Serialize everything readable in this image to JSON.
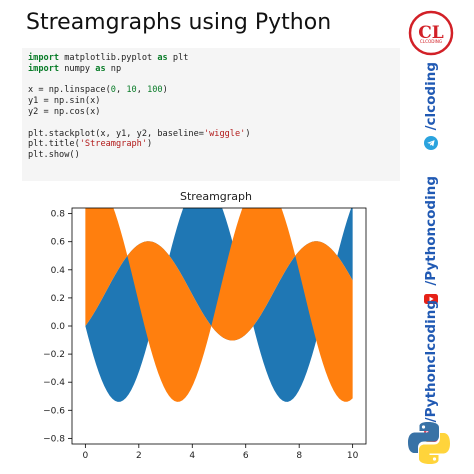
{
  "page": {
    "title": "Streamgraphs using Python"
  },
  "code": {
    "lines": [
      {
        "parts": [
          {
            "t": "import",
            "c": "kw"
          },
          {
            "t": " matplotlib.pyplot ",
            "c": ""
          },
          {
            "t": "as",
            "c": "kw"
          },
          {
            "t": " plt",
            "c": ""
          }
        ]
      },
      {
        "parts": [
          {
            "t": "import",
            "c": "kw"
          },
          {
            "t": " numpy ",
            "c": ""
          },
          {
            "t": "as",
            "c": "kw"
          },
          {
            "t": " np",
            "c": ""
          }
        ]
      },
      {
        "parts": []
      },
      {
        "parts": [
          {
            "t": "x = np.linspace(",
            "c": ""
          },
          {
            "t": "0",
            "c": "num"
          },
          {
            "t": ", ",
            "c": ""
          },
          {
            "t": "10",
            "c": "num"
          },
          {
            "t": ", ",
            "c": ""
          },
          {
            "t": "100",
            "c": "num"
          },
          {
            "t": ")",
            "c": ""
          }
        ]
      },
      {
        "parts": [
          {
            "t": "y1 = np.sin(x)",
            "c": ""
          }
        ]
      },
      {
        "parts": [
          {
            "t": "y2 = np.cos(x)",
            "c": ""
          }
        ]
      },
      {
        "parts": []
      },
      {
        "parts": [
          {
            "t": "plt.stackplot(x, y1, y2, baseline=",
            "c": ""
          },
          {
            "t": "'wiggle'",
            "c": "str"
          },
          {
            "t": ")",
            "c": ""
          }
        ]
      },
      {
        "parts": [
          {
            "t": "plt.title(",
            "c": ""
          },
          {
            "t": "'Streamgraph'",
            "c": "str"
          },
          {
            "t": ")",
            "c": ""
          }
        ]
      },
      {
        "parts": [
          {
            "t": "plt.show()",
            "c": ""
          }
        ]
      }
    ]
  },
  "chart_data": {
    "type": "area",
    "title": "Streamgraph",
    "xlabel": "",
    "ylabel": "",
    "baseline": "wiggle",
    "x_range": [
      0,
      10
    ],
    "samples": 100,
    "xlim": [
      -0.5,
      10.5
    ],
    "ylim": [
      -0.84,
      0.84
    ],
    "x_ticks": [
      0,
      2,
      4,
      6,
      8,
      10
    ],
    "y_ticks": [
      -0.8,
      -0.6,
      -0.4,
      -0.2,
      0.0,
      0.2,
      0.4,
      0.6,
      0.8
    ],
    "x_tick_labels": [
      "0",
      "2",
      "4",
      "6",
      "8",
      "10"
    ],
    "y_tick_labels": [
      "−0.8",
      "−0.6",
      "−0.4",
      "−0.2",
      "0.0",
      "0.2",
      "0.4",
      "0.6",
      "0.8"
    ],
    "grid": false,
    "series": [
      {
        "formula": "sin(x)",
        "color": "#1f77b4"
      },
      {
        "formula": "cos(x)",
        "color": "#ff7f0e"
      }
    ]
  },
  "sidebar": {
    "logo_text": "CL",
    "logo_caption": "CLCODING",
    "items": [
      {
        "label": "/clcoding",
        "icon": "telegram-icon"
      },
      {
        "label": "/Pythoncoding",
        "icon": "youtube-icon"
      },
      {
        "label": "/Pythonclcoding",
        "icon": "instagram-icon"
      }
    ],
    "python_icon": "python-logo-icon"
  },
  "colors": {
    "blue": "#1f77b4",
    "orange": "#ff7f0e",
    "sidebar_text": "#2059b3",
    "logo_red": "#d22027"
  }
}
